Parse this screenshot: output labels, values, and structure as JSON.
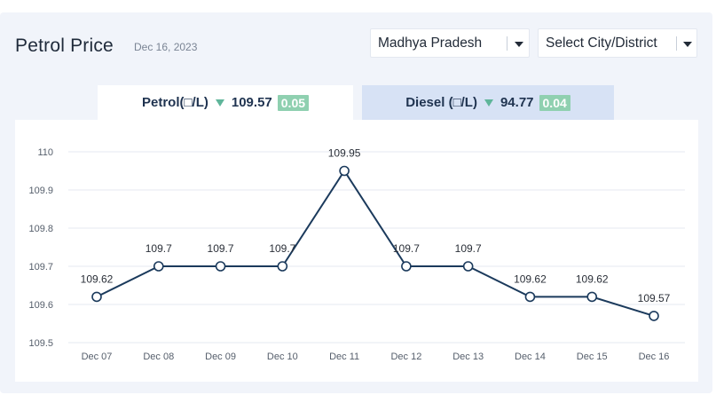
{
  "header": {
    "title": "Petrol Price",
    "date": "Dec 16, 2023"
  },
  "filters": {
    "state": "Madhya Pradesh",
    "city": "Select City/District"
  },
  "tabs": [
    {
      "label": "Petrol(□/L)",
      "price": "109.57",
      "change": "0.05",
      "trend": "down",
      "active": true
    },
    {
      "label": "Diesel (□/L)",
      "price": "94.77",
      "change": "0.04",
      "trend": "down",
      "active": false
    }
  ],
  "colors": {
    "line": "#1b3a5c",
    "badge": "#8fd0b0",
    "down_arrow": "#5fb59a",
    "inactive_tab": "#d7e2f5",
    "panel_bg": "#f1f4fa"
  },
  "icons": {
    "dropdown": "caret-down-icon",
    "trend": "triangle-down-icon"
  },
  "chart_data": {
    "type": "line",
    "categories": [
      "Dec 07",
      "Dec 08",
      "Dec 09",
      "Dec 10",
      "Dec 11",
      "Dec 12",
      "Dec 13",
      "Dec 14",
      "Dec 15",
      "Dec 16"
    ],
    "values": [
      109.62,
      109.7,
      109.7,
      109.7,
      109.95,
      109.7,
      109.7,
      109.62,
      109.62,
      109.57
    ],
    "data_labels": [
      "109.62",
      "109.7",
      "109.7",
      "109.7",
      "109.95",
      "109.7",
      "109.7",
      "109.62",
      "109.62",
      "109.57"
    ],
    "y_ticks": [
      "110",
      "109.9",
      "109.8",
      "109.7",
      "109.6",
      "109.5"
    ],
    "y_tick_values": [
      110,
      109.9,
      109.8,
      109.7,
      109.6,
      109.5
    ],
    "ylim": [
      109.5,
      110
    ],
    "grid": true,
    "legend": "none"
  }
}
